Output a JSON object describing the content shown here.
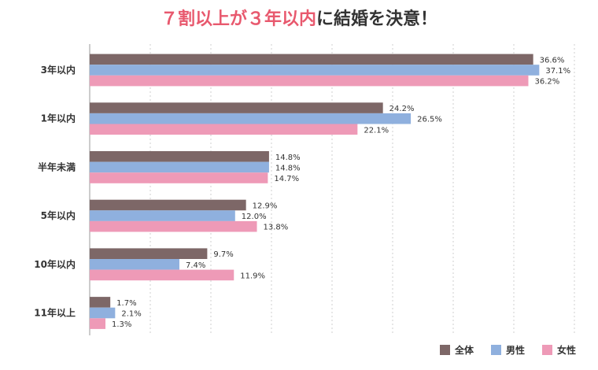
{
  "title": {
    "highlight": "７割以上が３年以内",
    "rest": "に結婚を決意！"
  },
  "chart_data": {
    "type": "bar",
    "orientation": "horizontal",
    "categories": [
      "3年以内",
      "1年以内",
      "半年未満",
      "5年以内",
      "10年以内",
      "11年以上"
    ],
    "series": [
      {
        "name": "全体",
        "color": "#7d6767",
        "values": [
          36.6,
          24.2,
          14.8,
          12.9,
          9.7,
          1.7
        ],
        "labels": [
          "36.6%",
          "24.2%",
          "14.8%",
          "12.9%",
          "9.7%",
          "1.7%"
        ]
      },
      {
        "name": "男性",
        "color": "#8fb0de",
        "values": [
          37.1,
          26.5,
          14.8,
          12.0,
          7.4,
          2.1
        ],
        "labels": [
          "37.1%",
          "26.5%",
          "14.8%",
          "12.0%",
          "7.4%",
          "2.1%"
        ]
      },
      {
        "name": "女性",
        "color": "#ee9ab7",
        "values": [
          36.2,
          22.1,
          14.7,
          13.8,
          11.9,
          1.3
        ],
        "labels": [
          "36.2%",
          "22.1%",
          "14.7%",
          "13.8%",
          "11.9%",
          "1.3%"
        ]
      }
    ],
    "xlim": [
      0,
      40
    ],
    "grid": true,
    "legend": "bottom-right"
  }
}
